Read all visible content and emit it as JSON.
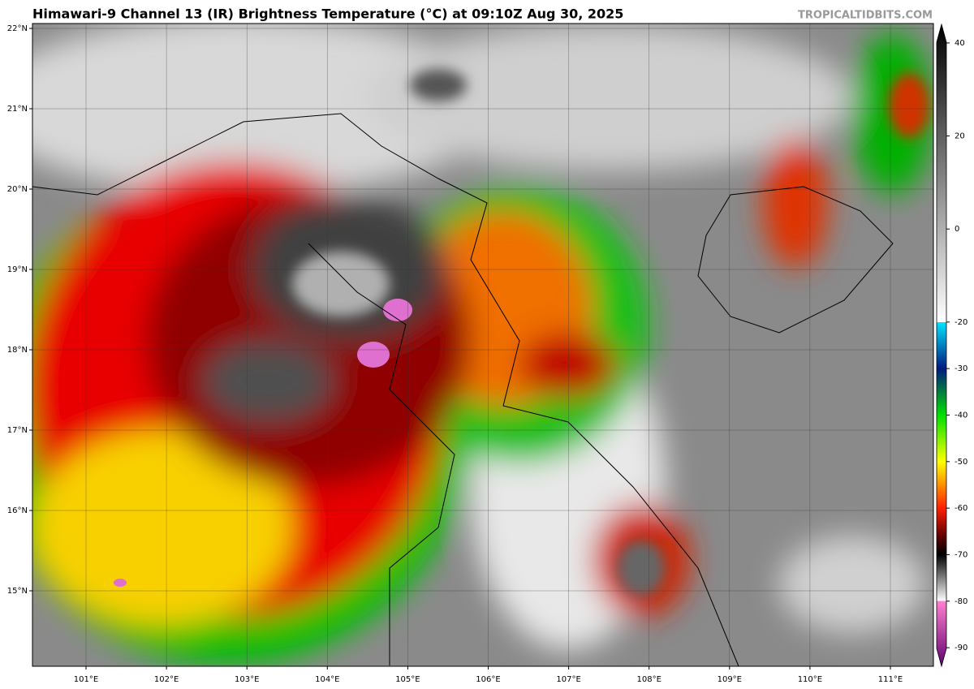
{
  "header": {
    "title": "Himawari-9 Channel 13 (IR) Brightness Temperature (°C) at 09:10Z Aug 30, 2025",
    "watermark": "TROPICALTIDBITS.COM"
  },
  "map": {
    "lat_labels": [
      "22°N",
      "21°N",
      "20°N",
      "19°N",
      "18°N",
      "17°N",
      "16°N",
      "15°N"
    ],
    "lon_labels": [
      "101°E",
      "102°E",
      "103°E",
      "104°E",
      "105°E",
      "106°E",
      "107°E",
      "108°E",
      "109°E",
      "110°E",
      "111°E"
    ]
  },
  "colorbar": {
    "lim": [
      -94,
      44
    ],
    "ticks": [
      40,
      20,
      0,
      -20,
      -30,
      -40,
      -50,
      -60,
      -70,
      -80,
      -90
    ],
    "stops": [
      {
        "value": 44,
        "color": "#000000"
      },
      {
        "value": -20,
        "color": "#ffffff"
      },
      {
        "value": -20.01,
        "color": "#00e5ff"
      },
      {
        "value": -30,
        "color": "#001a80"
      },
      {
        "value": -40,
        "color": "#00e000"
      },
      {
        "value": -50,
        "color": "#ffff00"
      },
      {
        "value": -60,
        "color": "#ff2000"
      },
      {
        "value": -66,
        "color": "#600000"
      },
      {
        "value": -70,
        "color": "#000000"
      },
      {
        "value": -79.99,
        "color": "#ffffff"
      },
      {
        "value": -80,
        "color": "#ff80d0"
      },
      {
        "value": -94,
        "color": "#600070"
      }
    ]
  }
}
